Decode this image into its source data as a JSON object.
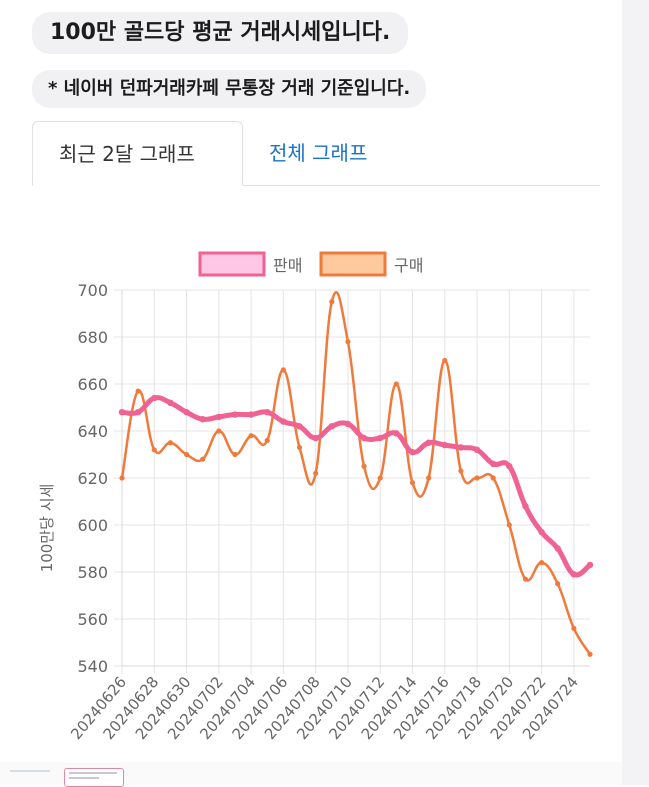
{
  "header": {
    "title": "100만 골드당 평균 거래시세입니다.",
    "note": "* 네이버 던파거래카페 무통장 거래 기준입니다."
  },
  "tabs": [
    {
      "label": "최근 2달 그래프",
      "active": true
    },
    {
      "label": "전체 그래프",
      "active": false
    }
  ],
  "colors": {
    "sell": "#f06292",
    "sell_fill": "#ffc7e6",
    "buy": "#f07a3c",
    "buy_fill": "#ffc99f",
    "link": "#1a73c8"
  },
  "chart_data": {
    "type": "line",
    "ylabel": "100만당 시세",
    "xlabel": "",
    "ylim": [
      540,
      700
    ],
    "yticks": [
      540,
      560,
      580,
      600,
      620,
      640,
      660,
      680,
      700
    ],
    "grid": true,
    "legend_placement": "top-center",
    "x": [
      "20240626",
      "20240627",
      "20240628",
      "20240629",
      "20240630",
      "20240701",
      "20240702",
      "20240703",
      "20240704",
      "20240705",
      "20240706",
      "20240707",
      "20240708",
      "20240709",
      "20240710",
      "20240711",
      "20240712",
      "20240713",
      "20240714",
      "20240715",
      "20240716",
      "20240717",
      "20240718",
      "20240719",
      "20240720",
      "20240721",
      "20240722",
      "20240723",
      "20240724",
      "20240725"
    ],
    "x_tick_labels": [
      "20240626",
      "20240628",
      "20240630",
      "20240702",
      "20240704",
      "20240706",
      "20240708",
      "20240710",
      "20240712",
      "20240714",
      "20240716",
      "20240718",
      "20240720",
      "20240722",
      "20240724"
    ],
    "series": [
      {
        "name": "판매",
        "key": "sell",
        "values": [
          648,
          648,
          654,
          652,
          648,
          645,
          646,
          647,
          647,
          648,
          644,
          642,
          637,
          642,
          643,
          637,
          637,
          639,
          631,
          635,
          634,
          633,
          632,
          626,
          625,
          608,
          597,
          590,
          579,
          583
        ]
      },
      {
        "name": "구매",
        "key": "buy",
        "values": [
          620,
          657,
          632,
          635,
          630,
          628,
          640,
          630,
          638,
          636,
          666,
          633,
          622,
          695,
          678,
          625,
          620,
          660,
          618,
          620,
          670,
          623,
          620,
          620,
          600,
          577,
          584,
          575,
          556,
          545
        ]
      }
    ]
  }
}
